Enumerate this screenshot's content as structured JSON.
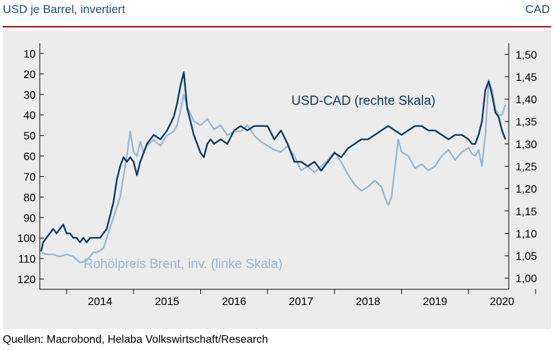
{
  "header": {
    "left_title": "USD je Barrel, invertiert",
    "right_title": "CAD"
  },
  "footer": {
    "source": "Quellen: Macrobond, Helaba Volkswirtschaft/Research"
  },
  "colors": {
    "usdcad": "#0b3a63",
    "brent": "#9ab7d3",
    "rule": "#c00000",
    "header_text": "#1f4e79",
    "plot_background": "#ececec"
  },
  "chart_data": {
    "type": "line",
    "title": "",
    "grid": false,
    "x_range": [
      2013.6,
      2020.6
    ],
    "x_ticks": [
      "2014",
      "2015",
      "2016",
      "2017",
      "2018",
      "2019",
      "2020"
    ],
    "left_axis": {
      "inverted": true,
      "range": [
        5,
        125
      ],
      "ticks": [
        "10",
        "20",
        "30",
        "40",
        "50",
        "60",
        "70",
        "80",
        "90",
        "100",
        "110",
        "120"
      ]
    },
    "right_axis": {
      "range": [
        0.975,
        1.525
      ],
      "ticks": [
        "1,00",
        "1,05",
        "1,10",
        "1,15",
        "1,20",
        "1,25",
        "1,30",
        "1,35",
        "1,40",
        "1,45",
        "1,50"
      ]
    },
    "series": [
      {
        "name": "USD-CAD (rechte Skala)",
        "axis": "right",
        "x": [
          2013.62,
          2013.65,
          2013.7,
          2013.75,
          2013.8,
          2013.85,
          2013.9,
          2013.95,
          2014.0,
          2014.05,
          2014.1,
          2014.15,
          2014.2,
          2014.25,
          2014.3,
          2014.35,
          2014.4,
          2014.45,
          2014.5,
          2014.55,
          2014.6,
          2014.65,
          2014.7,
          2014.75,
          2014.8,
          2014.85,
          2014.9,
          2014.95,
          2015.0,
          2015.05,
          2015.1,
          2015.15,
          2015.2,
          2015.3,
          2015.4,
          2015.5,
          2015.6,
          2015.65,
          2015.7,
          2015.75,
          2015.8,
          2015.9,
          2016.0,
          2016.05,
          2016.1,
          2016.15,
          2016.2,
          2016.3,
          2016.4,
          2016.5,
          2016.6,
          2016.7,
          2016.8,
          2016.9,
          2017.0,
          2017.1,
          2017.2,
          2017.3,
          2017.4,
          2017.5,
          2017.6,
          2017.7,
          2017.8,
          2017.9,
          2018.0,
          2018.1,
          2018.2,
          2018.3,
          2018.4,
          2018.5,
          2018.6,
          2018.7,
          2018.8,
          2018.9,
          2019.0,
          2019.1,
          2019.2,
          2019.3,
          2019.4,
          2019.5,
          2019.6,
          2019.7,
          2019.8,
          2019.9,
          2020.0,
          2020.05,
          2020.1,
          2020.15,
          2020.2,
          2020.25,
          2020.3,
          2020.35,
          2020.4,
          2020.45,
          2020.5,
          2020.55
        ],
        "y": [
          1.06,
          1.08,
          1.09,
          1.1,
          1.11,
          1.1,
          1.11,
          1.12,
          1.1,
          1.1,
          1.09,
          1.09,
          1.08,
          1.09,
          1.08,
          1.09,
          1.09,
          1.09,
          1.09,
          1.1,
          1.11,
          1.14,
          1.17,
          1.22,
          1.25,
          1.27,
          1.26,
          1.27,
          1.26,
          1.23,
          1.26,
          1.28,
          1.3,
          1.32,
          1.31,
          1.33,
          1.36,
          1.39,
          1.43,
          1.46,
          1.38,
          1.32,
          1.28,
          1.27,
          1.3,
          1.31,
          1.3,
          1.31,
          1.3,
          1.33,
          1.34,
          1.33,
          1.34,
          1.34,
          1.34,
          1.31,
          1.33,
          1.3,
          1.26,
          1.26,
          1.25,
          1.26,
          1.24,
          1.26,
          1.28,
          1.27,
          1.29,
          1.3,
          1.31,
          1.31,
          1.32,
          1.33,
          1.34,
          1.33,
          1.32,
          1.33,
          1.34,
          1.34,
          1.33,
          1.33,
          1.32,
          1.31,
          1.32,
          1.32,
          1.31,
          1.3,
          1.3,
          1.32,
          1.35,
          1.42,
          1.44,
          1.41,
          1.37,
          1.36,
          1.33,
          1.31
        ],
        "label": "USD-CAD (rechte Skala)"
      },
      {
        "name": "Rohölpreis Brent, inv. (linke Skala)",
        "axis": "left",
        "x": [
          2013.62,
          2013.7,
          2013.8,
          2013.9,
          2014.0,
          2014.1,
          2014.2,
          2014.3,
          2014.35,
          2014.4,
          2014.45,
          2014.5,
          2014.55,
          2014.6,
          2014.65,
          2014.7,
          2014.75,
          2014.8,
          2014.85,
          2014.9,
          2014.95,
          2015.0,
          2015.05,
          2015.1,
          2015.15,
          2015.2,
          2015.3,
          2015.4,
          2015.5,
          2015.6,
          2015.65,
          2015.7,
          2015.75,
          2015.8,
          2015.9,
          2016.0,
          2016.1,
          2016.2,
          2016.3,
          2016.4,
          2016.5,
          2016.6,
          2016.7,
          2016.8,
          2016.9,
          2017.0,
          2017.1,
          2017.2,
          2017.3,
          2017.4,
          2017.5,
          2017.6,
          2017.7,
          2017.8,
          2017.9,
          2018.0,
          2018.1,
          2018.2,
          2018.3,
          2018.4,
          2018.5,
          2018.6,
          2018.7,
          2018.75,
          2018.8,
          2018.85,
          2018.9,
          2018.95,
          2019.0,
          2019.1,
          2019.2,
          2019.3,
          2019.4,
          2019.5,
          2019.6,
          2019.7,
          2019.8,
          2019.9,
          2020.0,
          2020.05,
          2020.1,
          2020.15,
          2020.2,
          2020.25,
          2020.3,
          2020.35,
          2020.4,
          2020.45,
          2020.5,
          2020.55
        ],
        "y": [
          107,
          108,
          108,
          109,
          108,
          109,
          112,
          111,
          109,
          107,
          107,
          106,
          105,
          100,
          95,
          90,
          85,
          80,
          70,
          60,
          48,
          58,
          60,
          53,
          58,
          55,
          52,
          55,
          50,
          48,
          45,
          38,
          30,
          36,
          43,
          45,
          42,
          47,
          45,
          50,
          48,
          48,
          45,
          50,
          53,
          55,
          57,
          58,
          55,
          60,
          67,
          65,
          68,
          65,
          62,
          58,
          63,
          69,
          74,
          77,
          75,
          72,
          75,
          80,
          84,
          80,
          66,
          52,
          58,
          60,
          66,
          64,
          67,
          65,
          60,
          57,
          62,
          58,
          56,
          59,
          60,
          57,
          65,
          50,
          23,
          28,
          37,
          40,
          40,
          35
        ],
        "label": "Rohölpreis Brent, inv. (linke Skala)"
      }
    ]
  }
}
